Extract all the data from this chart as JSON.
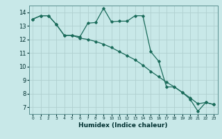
{
  "title": "",
  "xlabel": "Humidex (Indice chaleur)",
  "ylabel": "",
  "xlim": [
    -0.5,
    23.5
  ],
  "ylim": [
    6.5,
    14.5
  ],
  "xticks": [
    0,
    1,
    2,
    3,
    4,
    5,
    6,
    7,
    8,
    9,
    10,
    11,
    12,
    13,
    14,
    15,
    16,
    17,
    18,
    19,
    20,
    21,
    22,
    23
  ],
  "yticks": [
    7,
    8,
    9,
    10,
    11,
    12,
    13,
    14
  ],
  "background_color": "#c8e8e8",
  "grid_color": "#b0d0d0",
  "line_color": "#1a6b5a",
  "line1_x": [
    0,
    1,
    2,
    3,
    4,
    5,
    6,
    7,
    8,
    9,
    10,
    11,
    12,
    13,
    14,
    15,
    16,
    17,
    18,
    19,
    20,
    21,
    22,
    23
  ],
  "line1_y": [
    13.5,
    13.75,
    13.75,
    13.1,
    12.3,
    12.3,
    12.2,
    13.2,
    13.25,
    14.3,
    13.3,
    13.35,
    13.35,
    13.75,
    13.75,
    11.1,
    10.4,
    8.5,
    8.5,
    8.1,
    7.6,
    6.7,
    7.35,
    7.2
  ],
  "line2_x": [
    0,
    1,
    2,
    3,
    4,
    5,
    6,
    7,
    8,
    9,
    10,
    11,
    12,
    13,
    14,
    15,
    16,
    17,
    18,
    19,
    20,
    21,
    22,
    23
  ],
  "line2_y": [
    13.5,
    13.75,
    13.75,
    13.1,
    12.3,
    12.3,
    12.1,
    12.0,
    11.85,
    11.65,
    11.4,
    11.1,
    10.8,
    10.5,
    10.1,
    9.65,
    9.25,
    8.85,
    8.5,
    8.1,
    7.7,
    7.25,
    7.35,
    7.2
  ]
}
